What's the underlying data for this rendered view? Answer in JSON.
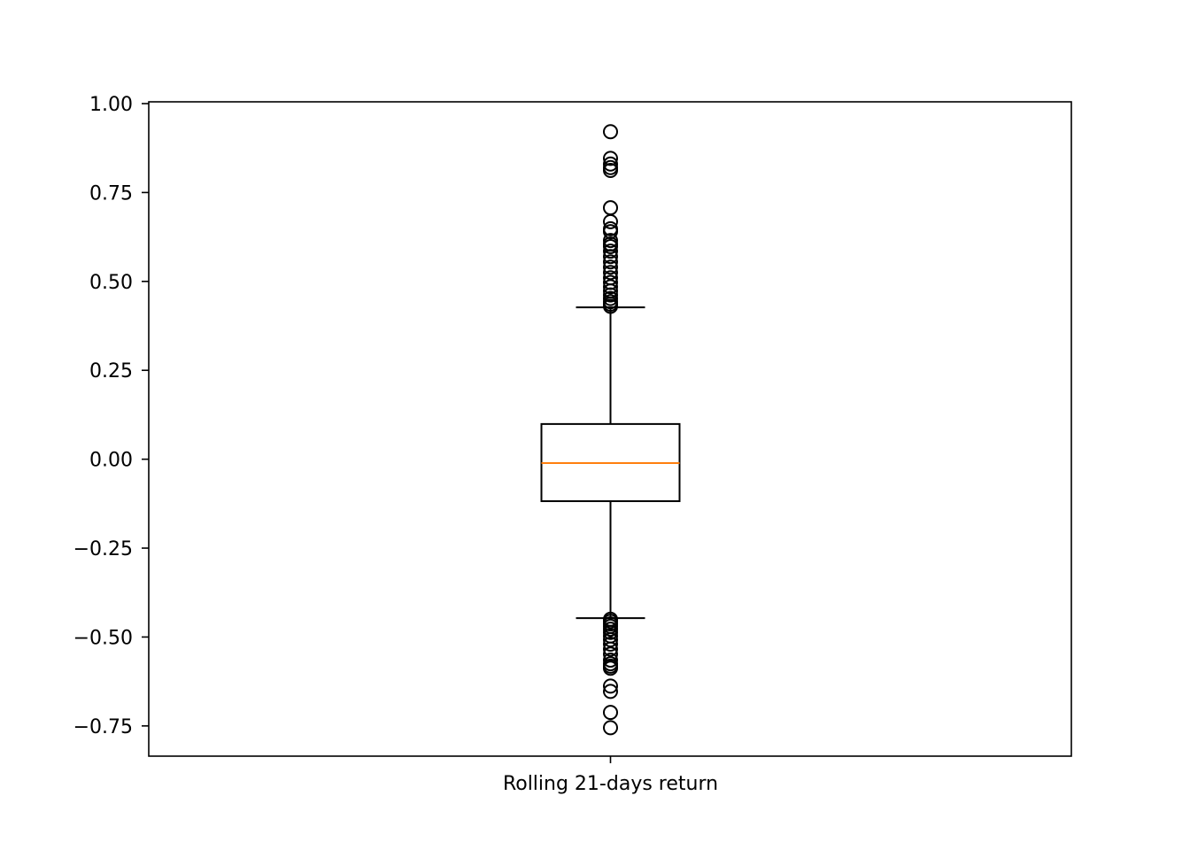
{
  "chart_data": {
    "type": "boxplot",
    "title": "",
    "xlabel": "",
    "ylabel": "",
    "categories": [
      "Rolling 21-days return"
    ],
    "ylim": [
      -0.835,
      1.005
    ],
    "yticks": [
      {
        "value": 1.0,
        "label": "1.00"
      },
      {
        "value": 0.75,
        "label": "0.75"
      },
      {
        "value": 0.5,
        "label": "0.50"
      },
      {
        "value": 0.25,
        "label": "0.25"
      },
      {
        "value": 0.0,
        "label": "0.00"
      },
      {
        "value": -0.25,
        "label": "−0.25"
      },
      {
        "value": -0.5,
        "label": "−0.50"
      },
      {
        "value": -0.75,
        "label": "−0.75"
      }
    ],
    "grid": false,
    "box": {
      "whisker_low": -0.447,
      "q1": -0.118,
      "median": -0.011,
      "q3": 0.099,
      "whisker_high": 0.427
    },
    "outliers_high": [
      0.921,
      0.846,
      0.83,
      0.82,
      0.812,
      0.707,
      0.668,
      0.648,
      0.64,
      0.615,
      0.605,
      0.598,
      0.585,
      0.57,
      0.555,
      0.54,
      0.525,
      0.51,
      0.497,
      0.485,
      0.473,
      0.462,
      0.452,
      0.443,
      0.436,
      0.43
    ],
    "outliers_low": [
      -0.45,
      -0.456,
      -0.463,
      -0.47,
      -0.478,
      -0.487,
      -0.497,
      -0.508,
      -0.52,
      -0.534,
      -0.548,
      -0.565,
      -0.575,
      -0.582,
      -0.588,
      -0.638,
      -0.653,
      -0.712,
      -0.755
    ],
    "colors": {
      "box": "#000000",
      "median": "#ff7f0e",
      "outlier": "#000000"
    }
  }
}
